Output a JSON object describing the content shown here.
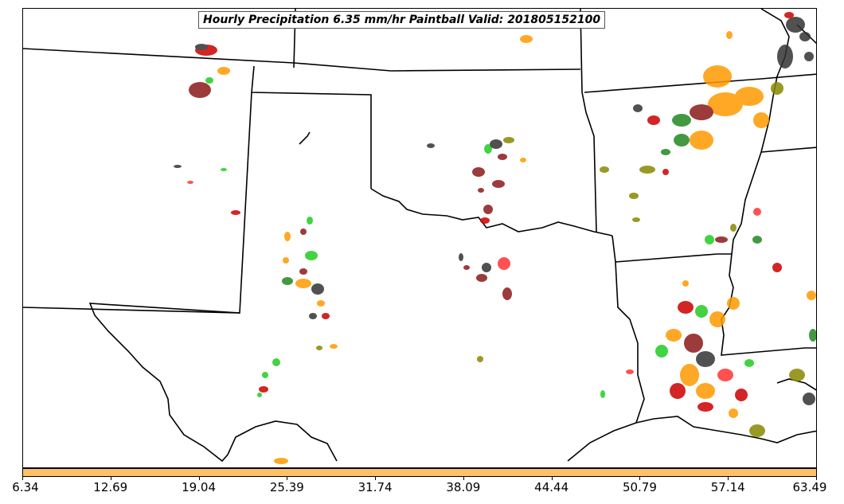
{
  "title": "Hourly Precipitation 6.35 mm/hr Paintball Valid: 201805152100",
  "colorbar": {
    "color": "#ffc066",
    "ticks": [
      "6.34",
      "12.69",
      "19.04",
      "25.39",
      "31.74",
      "38.09",
      "44.44",
      "50.79",
      "57.14",
      "63.49"
    ]
  },
  "colors": {
    "paintball_members": [
      "#cc0000",
      "#ff3333",
      "#ff9900",
      "#ffa030",
      "#22cc22",
      "#228822",
      "#8b1a1a",
      "#333333",
      "#888800"
    ],
    "boundary": "#000000"
  }
}
